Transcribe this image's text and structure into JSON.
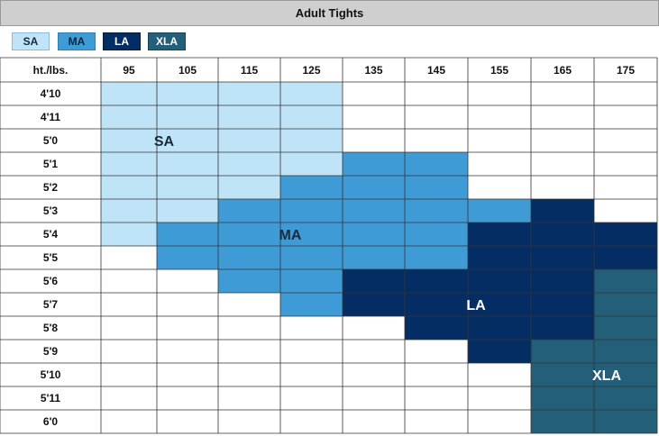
{
  "title": "Adult Tights",
  "corner_label": "ht./lbs.",
  "colors": {
    "SA": "#bfe3f7",
    "MA": "#3f9bd6",
    "LA": "#042e63",
    "XLA": "#245f7a",
    "header_bg": "#cfcfcf",
    "grid": "#333333"
  },
  "legend": [
    {
      "label": "SA"
    },
    {
      "label": "MA"
    },
    {
      "label": "LA"
    },
    {
      "label": "XLA"
    }
  ],
  "chart_data": {
    "type": "heatmap",
    "title": "Adult Tights",
    "xlabel": "lbs.",
    "ylabel": "ht.",
    "x": [
      "95",
      "105",
      "115",
      "125",
      "135",
      "145",
      "155",
      "165",
      "175"
    ],
    "y": [
      "4'10",
      "4'11",
      "5'0",
      "5'1",
      "5'2",
      "5'3",
      "5'4",
      "5'5",
      "5'6",
      "5'7",
      "5'8",
      "5'9",
      "5'10",
      "5'11",
      "6'0"
    ],
    "cells": [
      [
        "SA",
        "SA",
        "SA",
        "SA",
        "",
        "",
        "",
        "",
        ""
      ],
      [
        "SA",
        "SA",
        "SA",
        "SA",
        "",
        "",
        "",
        "",
        ""
      ],
      [
        "SA",
        "SA",
        "SA",
        "SA",
        "",
        "",
        "",
        "",
        ""
      ],
      [
        "SA",
        "SA",
        "SA",
        "SA",
        "MA",
        "MA",
        "",
        "",
        ""
      ],
      [
        "SA",
        "SA",
        "SA",
        "MA",
        "MA",
        "MA",
        "",
        "",
        ""
      ],
      [
        "SA",
        "SA",
        "MA",
        "MA",
        "MA",
        "MA",
        "MA",
        "LA",
        ""
      ],
      [
        "SA",
        "MA",
        "MA",
        "MA",
        "MA",
        "MA",
        "LA",
        "LA",
        "LA"
      ],
      [
        "",
        "MA",
        "MA",
        "MA",
        "MA",
        "MA",
        "LA",
        "LA",
        "LA"
      ],
      [
        "",
        "",
        "MA",
        "MA",
        "LA",
        "LA",
        "LA",
        "LA",
        "XLA"
      ],
      [
        "",
        "",
        "",
        "MA",
        "LA",
        "LA",
        "LA",
        "LA",
        "XLA"
      ],
      [
        "",
        "",
        "",
        "",
        "",
        "LA",
        "LA",
        "LA",
        "XLA"
      ],
      [
        "",
        "",
        "",
        "",
        "",
        "",
        "LA",
        "XLA",
        "XLA"
      ],
      [
        "",
        "",
        "",
        "",
        "",
        "",
        "",
        "XLA",
        "XLA"
      ],
      [
        "",
        "",
        "",
        "",
        "",
        "",
        "",
        "XLA",
        "XLA"
      ],
      [
        "",
        "",
        "",
        "",
        "",
        "",
        "",
        "XLA",
        "XLA"
      ]
    ],
    "region_labels": [
      {
        "text": "SA",
        "size": "SA"
      },
      {
        "text": "MA",
        "size": "MA"
      },
      {
        "text": "LA",
        "size": "LA"
      },
      {
        "text": "XLA",
        "size": "XLA"
      }
    ]
  }
}
